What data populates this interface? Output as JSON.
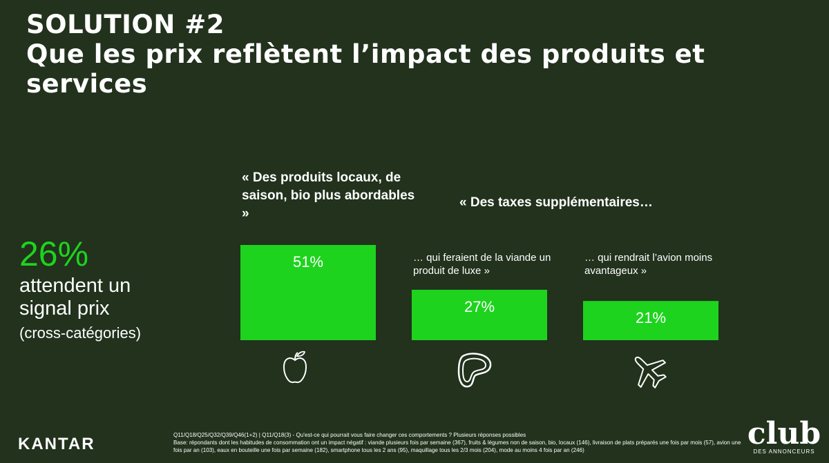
{
  "title": {
    "line1": "SOLUTION #2",
    "line2": "Que les prix reflètent l’impact des produits et",
    "line3": "services"
  },
  "kpi": {
    "value": "26%",
    "text": "attendent un signal prix",
    "sub": "(cross-catégories)"
  },
  "quotes": {
    "main": "« Des produits locaux, de saison, bio plus abordables »",
    "taxes": "« Des taxes supplémentaires…",
    "meat": "… qui feraient de la viande un produit de luxe »",
    "plane": "… qui rendrait l’avion moins avantageux »"
  },
  "icons": [
    "apple-icon",
    "steak-icon",
    "airplane-icon"
  ],
  "colors": {
    "background": "#22321d",
    "bar": "#1ed31e",
    "accent": "#1ed31e"
  },
  "chart_data": {
    "type": "bar",
    "categories": [
      "« Des produits locaux, de saison, bio plus abordables »",
      "… qui feraient de la viande un produit de luxe »",
      "… qui rendrait l’avion moins avantageux »"
    ],
    "values": [
      51,
      27,
      21
    ],
    "labels": [
      "51%",
      "27%",
      "21%"
    ],
    "unit": "%"
  },
  "footnote": {
    "line1": "Q11/Q18/Q25/Q32/Q39/Q46(1+2) | Q11/Q18(3) - Qu'est-ce qui pourrait vous faire changer ces comportements ? Plusieurs réponses possibles",
    "line2": "Base: répondants dont les habitudes de consommation ont un impact négatif : viande plusieurs fois par semaine (367), fruits & légumes non de saison, bio, locaux (146), livraison de plats préparés une fois par mois (57), avion une fois par an (103), eaux en bouteille une fois par semaine (182), smartphone tous les 2 ans (95), maquillage tous les 2/3 mois (204), mode au moins 4 fois par an (246)"
  },
  "brand": {
    "kantar": "KANTAR",
    "club": "club",
    "club_sub": "DES ANNONCEURS"
  }
}
